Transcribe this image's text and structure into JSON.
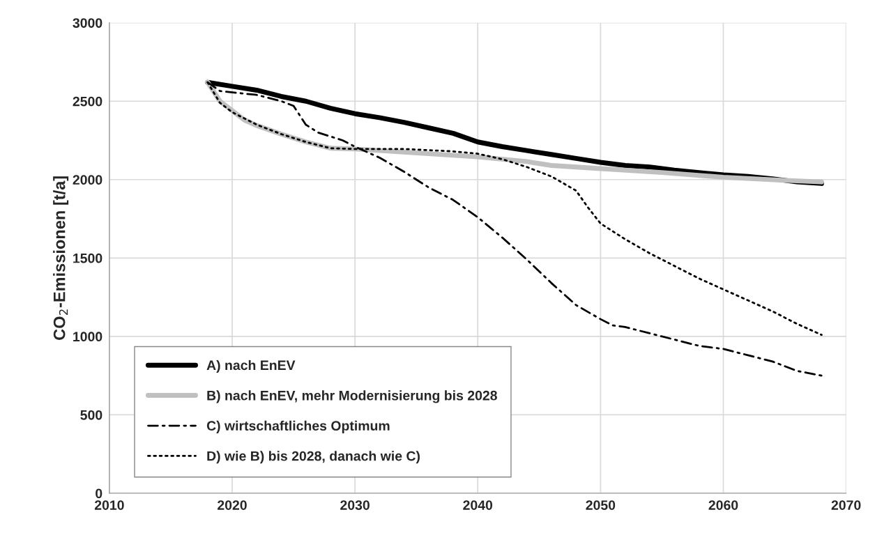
{
  "chart_data": {
    "type": "line",
    "ylabel": "CO$_{2}$-Emissionen [t/a]",
    "xlim": [
      2010,
      2070
    ],
    "xticks": [
      2010,
      2020,
      2030,
      2040,
      2050,
      2060,
      2070
    ],
    "ylim": [
      0,
      3000
    ],
    "yticks": [
      0,
      500,
      1000,
      1500,
      2000,
      2500,
      3000
    ],
    "grid": true,
    "legend": "bottom left",
    "marker": "none",
    "series": [
      {
        "name": "A) nach EnEV",
        "color": "#000000",
        "line_style": "solid",
        "x": [
          2018,
          2020,
          2022,
          2024,
          2026,
          2028,
          2030,
          2032,
          2034,
          2036,
          2038,
          2040,
          2042,
          2044,
          2046,
          2048,
          2050,
          2052,
          2054,
          2056,
          2058,
          2060,
          2062,
          2064,
          2066,
          2068
        ],
        "values": [
          2620,
          2595,
          2570,
          2530,
          2500,
          2455,
          2420,
          2395,
          2365,
          2330,
          2295,
          2240,
          2210,
          2185,
          2160,
          2135,
          2110,
          2090,
          2080,
          2060,
          2045,
          2030,
          2020,
          2005,
          1985,
          1975
        ]
      },
      {
        "name": "B) nach EnEV, mehr Modernisierung bis 2028",
        "color": "#c0c0c0",
        "line_style": "solid",
        "x": [
          2018,
          2019,
          2020,
          2021,
          2022,
          2024,
          2026,
          2028,
          2030,
          2034,
          2038,
          2040,
          2044,
          2046,
          2050,
          2055,
          2060,
          2065,
          2068
        ],
        "values": [
          2620,
          2500,
          2440,
          2380,
          2345,
          2290,
          2240,
          2200,
          2195,
          2175,
          2155,
          2145,
          2115,
          2090,
          2070,
          2045,
          2015,
          1995,
          1985
        ]
      },
      {
        "name": "C) wirtschaftliches Optimum",
        "color": "#000000",
        "line_style": "dashdot",
        "x": [
          2018,
          2019,
          2022,
          2024,
          2025,
          2026,
          2027,
          2029,
          2030,
          2032,
          2034,
          2036,
          2038,
          2040,
          2042,
          2044,
          2046,
          2048,
          2050,
          2051,
          2052,
          2055,
          2058,
          2060,
          2062,
          2064,
          2066,
          2068
        ],
        "values": [
          2620,
          2565,
          2540,
          2500,
          2470,
          2350,
          2300,
          2250,
          2210,
          2140,
          2050,
          1950,
          1870,
          1760,
          1630,
          1490,
          1340,
          1200,
          1110,
          1070,
          1060,
          1000,
          940,
          920,
          880,
          840,
          780,
          750
        ]
      },
      {
        "name": "D) wie B) bis 2028, danach wie C)",
        "color": "#000000",
        "line_style": "dotted",
        "x": [
          2018,
          2019,
          2020,
          2022,
          2024,
          2026,
          2028,
          2030,
          2034,
          2038,
          2040,
          2042,
          2044,
          2046,
          2048,
          2049,
          2050,
          2052,
          2054,
          2056,
          2058,
          2060,
          2062,
          2064,
          2066,
          2068
        ],
        "values": [
          2620,
          2490,
          2430,
          2350,
          2290,
          2240,
          2200,
          2195,
          2195,
          2180,
          2165,
          2130,
          2080,
          2020,
          1930,
          1820,
          1720,
          1620,
          1530,
          1450,
          1370,
          1300,
          1230,
          1160,
          1080,
          1010
        ]
      }
    ]
  }
}
